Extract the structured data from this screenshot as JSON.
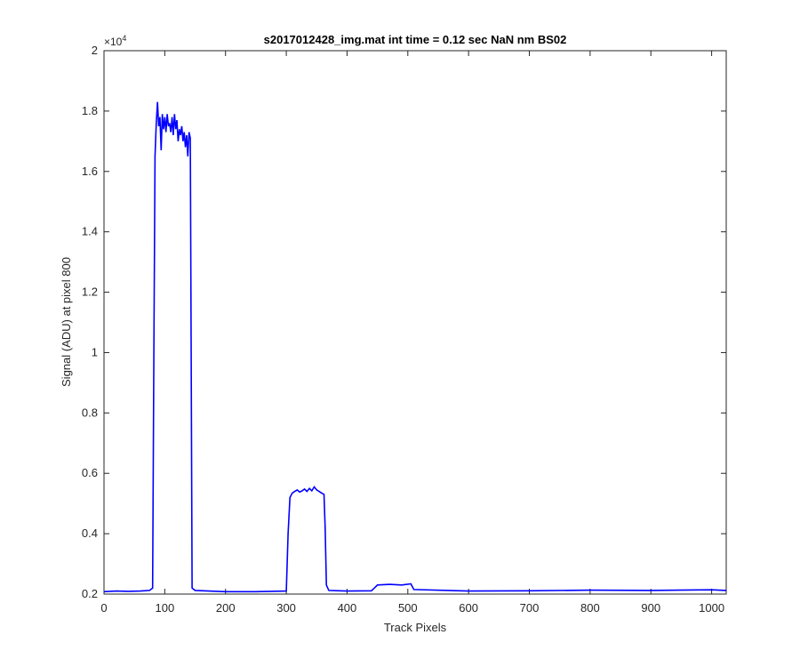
{
  "chart_data": {
    "type": "line",
    "title": "s2017012428_img.mat int time = 0.12 sec  NaN nm BS02",
    "xlabel": "Track Pixels",
    "ylabel": "Signal (ADU) at pixel 800",
    "xlim": [
      0,
      1024
    ],
    "ylim": [
      2000,
      20000
    ],
    "x_ticks": [
      0,
      100,
      200,
      300,
      400,
      500,
      600,
      700,
      800,
      900,
      1000
    ],
    "y_ticks": [
      2000,
      4000,
      6000,
      8000,
      10000,
      12000,
      14000,
      16000,
      18000,
      20000
    ],
    "y_tick_labels": [
      "0.2",
      "0.4",
      "0.6",
      "0.8",
      "1",
      "1.2",
      "1.4",
      "1.6",
      "1.8",
      "2"
    ],
    "y_exponent_label": "×10",
    "y_exponent_power": "4",
    "grid": false,
    "series_color": "#0000ff",
    "series": [
      {
        "x": [
          0,
          20,
          40,
          60,
          75,
          80,
          82,
          84,
          86,
          88,
          90,
          92,
          94,
          96,
          98,
          100,
          102,
          104,
          106,
          108,
          110,
          112,
          114,
          116,
          118,
          120,
          122,
          124,
          126,
          128,
          130,
          132,
          134,
          136,
          138,
          140,
          142,
          143,
          145,
          150,
          200,
          250,
          300,
          303,
          306,
          310,
          314,
          318,
          322,
          326,
          330,
          334,
          338,
          342,
          346,
          350,
          354,
          358,
          362,
          364,
          366,
          370,
          400,
          440,
          445,
          450,
          470,
          490,
          505,
          510,
          600,
          700,
          800,
          900,
          1000,
          1024
        ],
        "y": [
          2080,
          2100,
          2090,
          2100,
          2120,
          2200,
          10000,
          16500,
          17600,
          18300,
          17500,
          17800,
          16700,
          17900,
          17400,
          17800,
          17300,
          17900,
          17500,
          17600,
          17300,
          17800,
          17200,
          17900,
          17400,
          17700,
          17000,
          17400,
          17200,
          17500,
          17000,
          17300,
          16800,
          17200,
          16500,
          17300,
          17100,
          12000,
          2200,
          2120,
          2080,
          2080,
          2100,
          4000,
          5200,
          5350,
          5400,
          5450,
          5380,
          5420,
          5480,
          5400,
          5500,
          5420,
          5550,
          5450,
          5400,
          5350,
          5300,
          4200,
          2300,
          2120,
          2100,
          2110,
          2200,
          2300,
          2320,
          2300,
          2340,
          2150,
          2100,
          2110,
          2130,
          2120,
          2140,
          2120
        ]
      }
    ]
  }
}
